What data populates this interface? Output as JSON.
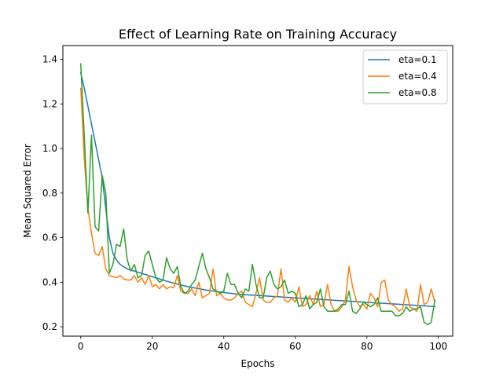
{
  "chart_data": {
    "type": "line",
    "title": "Effect of Learning Rate on Training Accuracy",
    "xlabel": "Epochs",
    "ylabel": "Mean Squared Error",
    "xlim": [
      -5,
      104
    ],
    "ylim": [
      0.158,
      1.462
    ],
    "xticks": [
      0,
      20,
      40,
      60,
      80,
      100
    ],
    "yticks": [
      0.2,
      0.4,
      0.6,
      0.8,
      1.0,
      1.2,
      1.4
    ],
    "ytick_labels": [
      "0.2",
      "0.4",
      "0.6",
      "0.8",
      "1.0",
      "1.2",
      "1.4"
    ],
    "legend_position": "top-right",
    "grid": false,
    "series": [
      {
        "name": "eta=0.1",
        "color": "#1f77b4",
        "x_start": 0,
        "values": [
          1.34,
          1.27,
          1.19,
          1.11,
          1.03,
          0.95,
          0.87,
          0.73,
          0.6,
          0.53,
          0.5,
          0.48,
          0.47,
          0.46,
          0.455,
          0.45,
          0.445,
          0.44,
          0.435,
          0.43,
          0.425,
          0.42,
          0.415,
          0.41,
          0.405,
          0.4,
          0.396,
          0.392,
          0.388,
          0.384,
          0.38,
          0.377,
          0.374,
          0.371,
          0.368,
          0.365,
          0.362,
          0.36,
          0.358,
          0.356,
          0.354,
          0.352,
          0.35,
          0.348,
          0.346,
          0.345,
          0.344,
          0.343,
          0.342,
          0.341,
          0.34,
          0.339,
          0.338,
          0.337,
          0.336,
          0.335,
          0.334,
          0.333,
          0.332,
          0.331,
          0.33,
          0.329,
          0.328,
          0.327,
          0.326,
          0.325,
          0.324,
          0.323,
          0.322,
          0.321,
          0.32,
          0.319,
          0.318,
          0.317,
          0.316,
          0.315,
          0.314,
          0.313,
          0.312,
          0.311,
          0.31,
          0.309,
          0.308,
          0.307,
          0.306,
          0.305,
          0.304,
          0.303,
          0.302,
          0.301,
          0.3,
          0.299,
          0.298,
          0.297,
          0.296,
          0.295,
          0.294,
          0.293,
          0.292,
          0.29
        ]
      },
      {
        "name": "eta=0.4",
        "color": "#ff7f0e",
        "x_start": 0,
        "values": [
          1.27,
          0.95,
          0.73,
          0.62,
          0.53,
          0.52,
          0.56,
          0.46,
          0.43,
          0.425,
          0.42,
          0.43,
          0.415,
          0.41,
          0.41,
          0.43,
          0.4,
          0.42,
          0.39,
          0.43,
          0.38,
          0.39,
          0.37,
          0.39,
          0.37,
          0.38,
          0.375,
          0.43,
          0.36,
          0.35,
          0.35,
          0.37,
          0.34,
          0.4,
          0.33,
          0.34,
          0.35,
          0.46,
          0.34,
          0.35,
          0.33,
          0.32,
          0.32,
          0.33,
          0.35,
          0.36,
          0.31,
          0.3,
          0.29,
          0.35,
          0.42,
          0.32,
          0.31,
          0.31,
          0.33,
          0.34,
          0.46,
          0.32,
          0.31,
          0.33,
          0.31,
          0.38,
          0.29,
          0.3,
          0.34,
          0.3,
          0.36,
          0.29,
          0.3,
          0.39,
          0.3,
          0.27,
          0.27,
          0.29,
          0.32,
          0.47,
          0.38,
          0.32,
          0.29,
          0.3,
          0.28,
          0.35,
          0.33,
          0.29,
          0.4,
          0.41,
          0.32,
          0.3,
          0.29,
          0.27,
          0.28,
          0.37,
          0.29,
          0.28,
          0.27,
          0.39,
          0.3,
          0.31,
          0.37,
          0.31
        ]
      },
      {
        "name": "eta=0.8",
        "color": "#2ca02c",
        "x_start": 0,
        "values": [
          1.38,
          1.05,
          0.71,
          1.06,
          0.65,
          0.63,
          0.88,
          0.8,
          0.44,
          0.48,
          0.57,
          0.56,
          0.64,
          0.5,
          0.45,
          0.48,
          0.42,
          0.43,
          0.52,
          0.54,
          0.48,
          0.42,
          0.4,
          0.41,
          0.51,
          0.46,
          0.44,
          0.47,
          0.38,
          0.35,
          0.36,
          0.39,
          0.41,
          0.47,
          0.53,
          0.46,
          0.42,
          0.37,
          0.36,
          0.35,
          0.36,
          0.44,
          0.39,
          0.39,
          0.35,
          0.33,
          0.37,
          0.36,
          0.48,
          0.39,
          0.33,
          0.33,
          0.42,
          0.45,
          0.39,
          0.37,
          0.38,
          0.41,
          0.35,
          0.36,
          0.35,
          0.29,
          0.3,
          0.34,
          0.28,
          0.3,
          0.31,
          0.37,
          0.29,
          0.27,
          0.27,
          0.27,
          0.28,
          0.3,
          0.3,
          0.36,
          0.27,
          0.26,
          0.28,
          0.31,
          0.3,
          0.29,
          0.3,
          0.33,
          0.27,
          0.27,
          0.27,
          0.27,
          0.25,
          0.25,
          0.26,
          0.29,
          0.27,
          0.28,
          0.28,
          0.29,
          0.22,
          0.21,
          0.22,
          0.32
        ]
      }
    ]
  }
}
